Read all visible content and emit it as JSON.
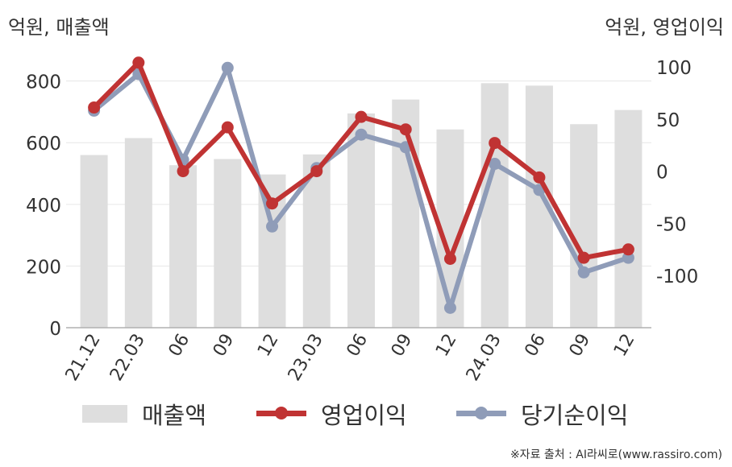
{
  "chart_data": {
    "type": "bar+line",
    "categories": [
      "21.12",
      "22.03",
      "06",
      "09",
      "12",
      "23.03",
      "06",
      "09",
      "12",
      "24.03",
      "06",
      "09",
      "12"
    ],
    "left_axis_unit": "억원, 매출액",
    "right_axis_unit": "억원, 영업이익",
    "left_ticks": [
      "0",
      "200",
      "400",
      "600",
      "800"
    ],
    "right_ticks": [
      "-100",
      "-50",
      "0",
      "50",
      "100"
    ],
    "left_ylim": [
      0,
      880
    ],
    "right_ylim": [
      -150,
      110
    ],
    "series": [
      {
        "name": "매출액",
        "type": "bar",
        "axis": "left",
        "color": "#dedede",
        "values": [
          560,
          615,
          527,
          547,
          497,
          562,
          695,
          740,
          643,
          793,
          785,
          660,
          706
        ]
      },
      {
        "name": "영업이익",
        "type": "line",
        "axis": "right",
        "color": "#c03333",
        "values": [
          61,
          104,
          0,
          42,
          -31,
          0,
          52,
          40,
          -84,
          27,
          -6,
          -83,
          -75
        ]
      },
      {
        "name": "당기순이익",
        "type": "line",
        "axis": "right",
        "color": "#8f9cb8",
        "values": [
          58,
          93,
          11,
          99,
          -53,
          3,
          35,
          23,
          -131,
          7,
          -18,
          -97,
          -83
        ]
      }
    ],
    "grid": true,
    "legend_position": "bottom"
  },
  "source": "※자료 출처 : AI라씨로(www.rassiro.com)"
}
